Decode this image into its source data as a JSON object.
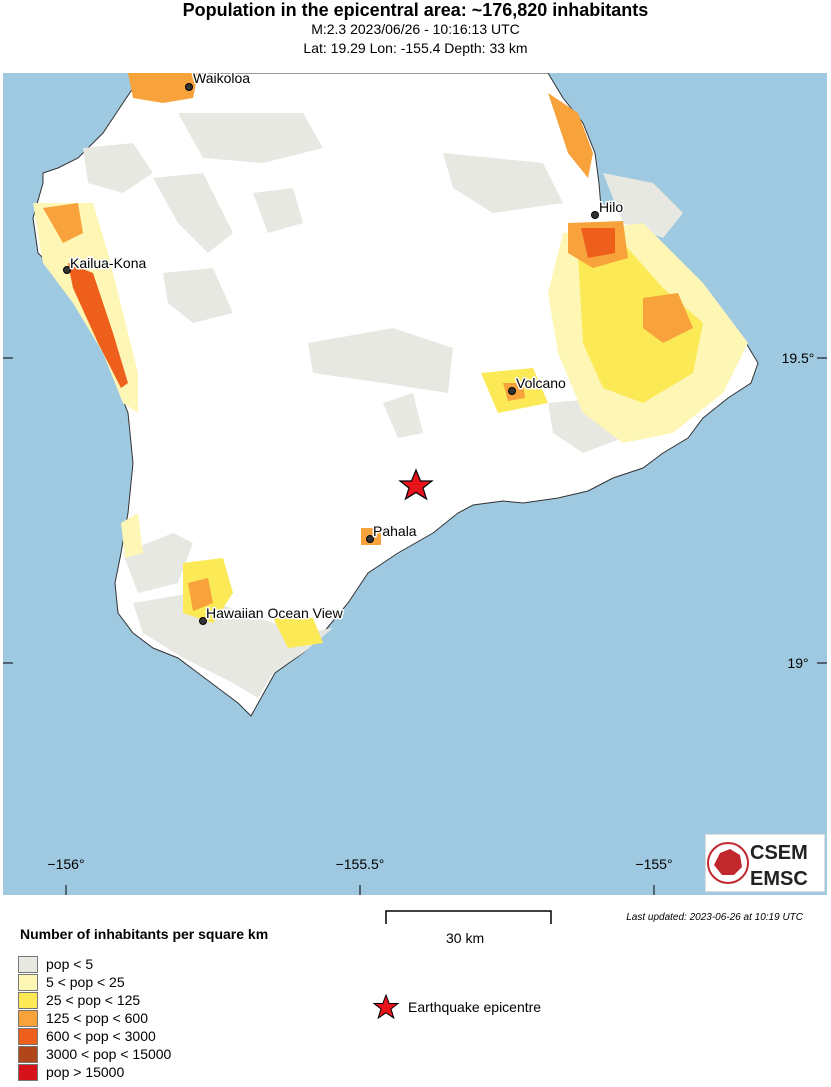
{
  "header": {
    "title": "Population in the epicentral area: ~176,820 inhabitants",
    "line1": "M:2.3 2023/06/26 - 10:16:13 UTC",
    "line2": "Lat: 19.29 Lon: -155.4 Depth: 33 km"
  },
  "map": {
    "lon_labels": [
      "−156°",
      "−155.5°",
      "−155°"
    ],
    "lat_labels": [
      "19.5°",
      "19°"
    ],
    "cities": [
      "Waikoloa",
      "Kailua-Kona",
      "Hilo",
      "Volcano",
      "Pahala",
      "Hawaiian Ocean View"
    ],
    "ocean_color": "#9ec9e0",
    "land_color": "#ffffff",
    "epicenter_color": "#e8141b"
  },
  "scale_bar": {
    "label": "30 km"
  },
  "updated": "Last updated: 2023-06-26 at 10:19 UTC",
  "logo": {
    "line1": "CSEM",
    "line2": "EMSC"
  },
  "legend": {
    "title": "Number of inhabitants per square km",
    "items": [
      {
        "label": "pop < 5",
        "color": "#e8e8e2"
      },
      {
        "label": "5 < pop < 25",
        "color": "#fdf6b5"
      },
      {
        "label": "25 < pop < 125",
        "color": "#fbe955"
      },
      {
        "label": "125 < pop < 600",
        "color": "#f7a23a"
      },
      {
        "label": "600 < pop < 3000",
        "color": "#ef5f1c"
      },
      {
        "label": "3000 < pop < 15000",
        "color": "#b0461a"
      },
      {
        "label": "pop > 15000",
        "color": "#d6121b"
      }
    ],
    "epicenter_label": "Earthquake epicentre"
  }
}
